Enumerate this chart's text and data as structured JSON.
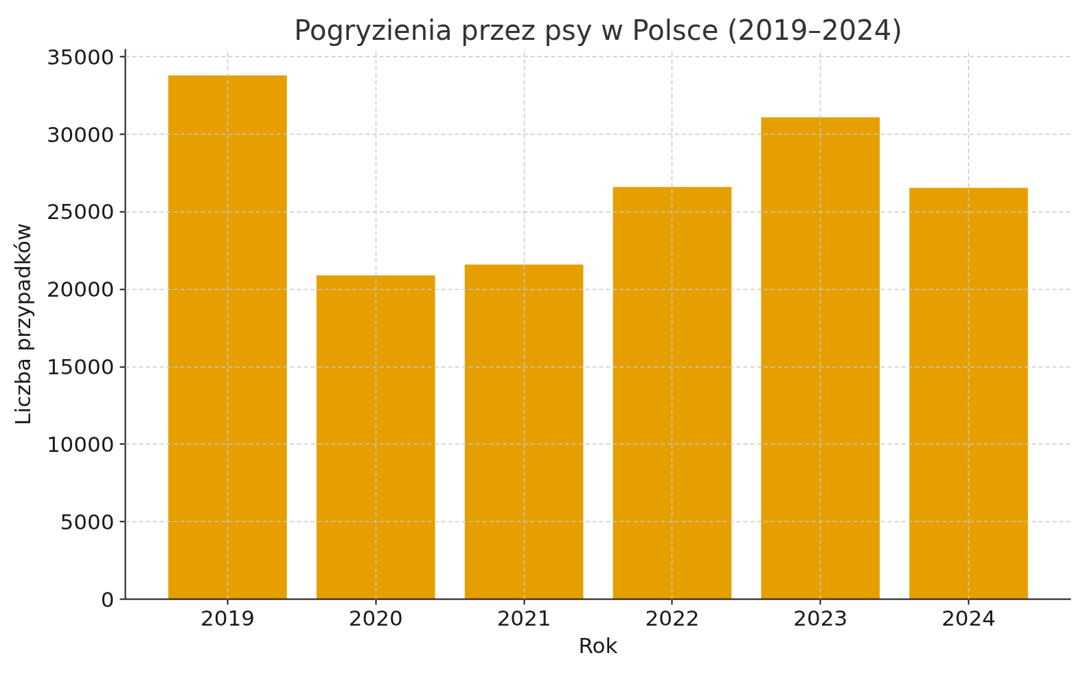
{
  "chart_data": {
    "type": "bar",
    "title": "Pogryzienia przez psy w Polsce (2019–2024)",
    "xlabel": "Rok",
    "ylabel": "Liczba przypadków",
    "categories": [
      "2019",
      "2020",
      "2021",
      "2022",
      "2023",
      "2024"
    ],
    "values": [
      33800,
      20900,
      21600,
      26600,
      31100,
      26550
    ],
    "color": "#e5a000",
    "ylim": [
      0,
      35500
    ],
    "yticks": [
      0,
      5000,
      10000,
      15000,
      20000,
      25000,
      30000,
      35000
    ],
    "grid": true
  }
}
